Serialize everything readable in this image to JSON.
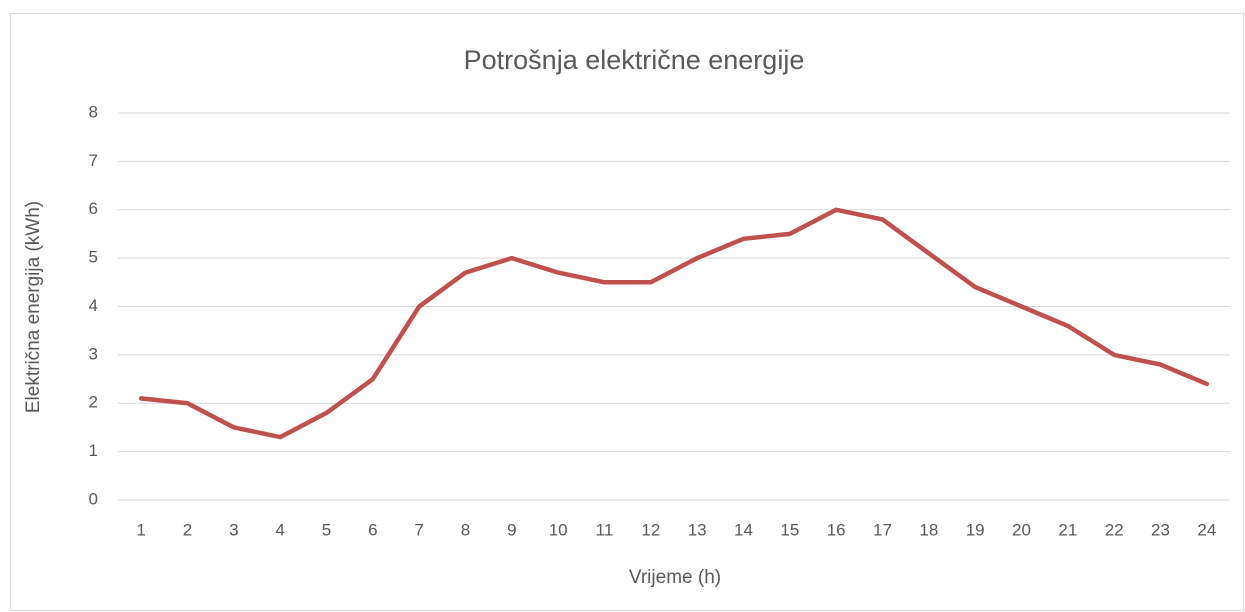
{
  "chart_data": {
    "type": "line",
    "title": "Potrošnja električne energije",
    "x_label": "Vrijeme (h)",
    "y_label": "Električna energija (kWh)",
    "categories": [
      "1",
      "2",
      "3",
      "4",
      "5",
      "6",
      "7",
      "8",
      "9",
      "10",
      "11",
      "12",
      "13",
      "14",
      "15",
      "16",
      "17",
      "18",
      "19",
      "20",
      "21",
      "22",
      "23",
      "24"
    ],
    "values": [
      2.1,
      2.0,
      1.5,
      1.3,
      1.8,
      2.5,
      4.0,
      4.7,
      5.0,
      4.7,
      4.5,
      4.5,
      5.0,
      5.4,
      5.5,
      6.0,
      5.8,
      5.1,
      4.4,
      4.0,
      3.6,
      3.0,
      2.8,
      2.4
    ],
    "color": "#c0504d",
    "ylim": [
      0,
      8
    ],
    "yticks": [
      0,
      1,
      2,
      3,
      4,
      5,
      6,
      7,
      8
    ],
    "grid": true
  }
}
